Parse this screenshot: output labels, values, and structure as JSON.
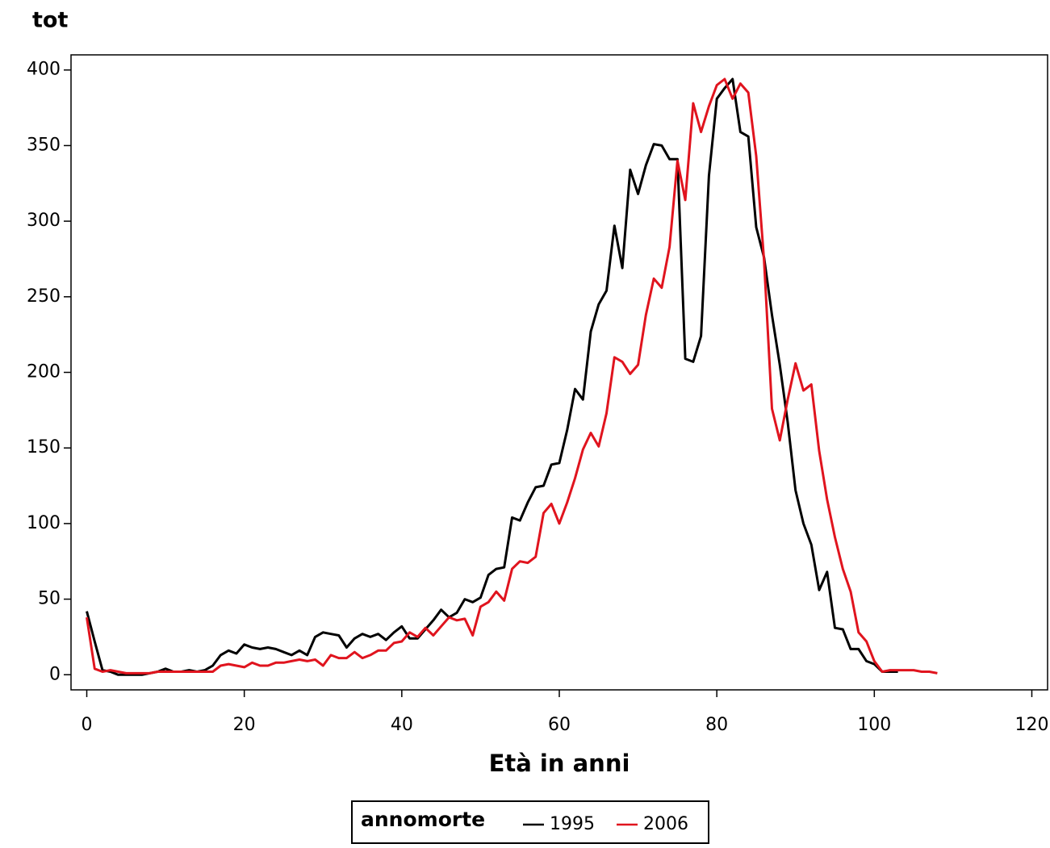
{
  "chart_data": {
    "type": "line",
    "y_label": "tot",
    "x_label": "Età in anni",
    "legend_title": "annomorte",
    "legend_position": "bottom",
    "xlim": [
      -2,
      122
    ],
    "ylim": [
      -10,
      410
    ],
    "xticks": [
      0,
      20,
      40,
      60,
      80,
      100,
      120
    ],
    "yticks": [
      0,
      50,
      100,
      150,
      200,
      250,
      300,
      350,
      400
    ],
    "series": [
      {
        "name": "1995",
        "color": "#000000",
        "x": [
          0,
          1,
          2,
          3,
          4,
          5,
          6,
          7,
          8,
          9,
          10,
          11,
          12,
          13,
          14,
          15,
          16,
          17,
          18,
          19,
          20,
          21,
          22,
          23,
          24,
          25,
          26,
          27,
          28,
          29,
          30,
          31,
          32,
          33,
          34,
          35,
          36,
          37,
          38,
          39,
          40,
          41,
          42,
          43,
          44,
          45,
          46,
          47,
          48,
          49,
          50,
          51,
          52,
          53,
          54,
          55,
          56,
          57,
          58,
          59,
          60,
          61,
          62,
          63,
          64,
          65,
          66,
          67,
          68,
          69,
          70,
          71,
          72,
          73,
          74,
          75,
          76,
          77,
          78,
          79,
          80,
          81,
          82,
          83,
          84,
          85,
          86,
          87,
          88,
          89,
          90,
          91,
          92,
          93,
          94,
          95,
          96,
          97,
          98,
          99,
          100,
          101,
          102,
          103
        ],
        "values": [
          42,
          22,
          3,
          2,
          0,
          0,
          0,
          0,
          1,
          2,
          4,
          2,
          2,
          3,
          2,
          3,
          6,
          13,
          16,
          14,
          20,
          18,
          17,
          18,
          17,
          15,
          13,
          16,
          13,
          25,
          28,
          27,
          26,
          18,
          24,
          27,
          25,
          27,
          23,
          28,
          32,
          24,
          24,
          30,
          36,
          43,
          38,
          41,
          50,
          48,
          51,
          66,
          70,
          71,
          104,
          102,
          114,
          124,
          125,
          139,
          140,
          162,
          189,
          182,
          227,
          245,
          254,
          297,
          269,
          334,
          318,
          337,
          351,
          350,
          341,
          341,
          209,
          207,
          224,
          330,
          381,
          388,
          394,
          359,
          356,
          296,
          276,
          238,
          205,
          167,
          122,
          100,
          86,
          56,
          68,
          31,
          30,
          17,
          17,
          9,
          7,
          2,
          2,
          2
        ]
      },
      {
        "name": "2006",
        "color": "#e0141e",
        "x": [
          0,
          1,
          2,
          3,
          4,
          5,
          6,
          7,
          8,
          9,
          10,
          11,
          12,
          13,
          14,
          15,
          16,
          17,
          18,
          19,
          20,
          21,
          22,
          23,
          24,
          25,
          26,
          27,
          28,
          29,
          30,
          31,
          32,
          33,
          34,
          35,
          36,
          37,
          38,
          39,
          40,
          41,
          42,
          43,
          44,
          45,
          46,
          47,
          48,
          49,
          50,
          51,
          52,
          53,
          54,
          55,
          56,
          57,
          58,
          59,
          60,
          61,
          62,
          63,
          64,
          65,
          66,
          67,
          68,
          69,
          70,
          71,
          72,
          73,
          74,
          75,
          76,
          77,
          78,
          79,
          80,
          81,
          82,
          83,
          84,
          85,
          86,
          87,
          88,
          89,
          90,
          91,
          92,
          93,
          94,
          95,
          96,
          97,
          98,
          99,
          100,
          101,
          102,
          103,
          104,
          105,
          106,
          107,
          108
        ],
        "values": [
          38,
          4,
          2,
          3,
          2,
          1,
          1,
          1,
          1,
          2,
          2,
          2,
          2,
          2,
          2,
          2,
          2,
          6,
          7,
          6,
          5,
          8,
          6,
          6,
          8,
          8,
          9,
          10,
          9,
          10,
          6,
          13,
          11,
          11,
          15,
          11,
          13,
          16,
          16,
          21,
          22,
          28,
          25,
          31,
          26,
          32,
          38,
          36,
          37,
          26,
          45,
          48,
          55,
          49,
          70,
          75,
          74,
          78,
          107,
          113,
          100,
          114,
          130,
          149,
          160,
          151,
          173,
          210,
          207,
          199,
          205,
          238,
          262,
          256,
          283,
          340,
          314,
          378,
          359,
          376,
          390,
          394,
          381,
          391,
          385,
          343,
          274,
          176,
          155,
          182,
          206,
          188,
          192,
          148,
          116,
          91,
          70,
          55,
          28,
          22,
          9,
          2,
          3,
          3,
          3,
          3,
          2,
          2,
          1
        ]
      }
    ]
  }
}
